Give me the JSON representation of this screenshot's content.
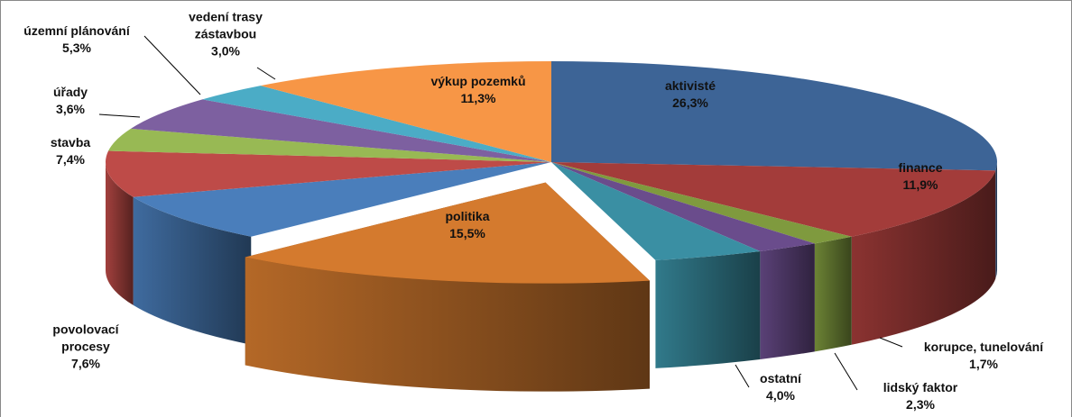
{
  "chart_data": {
    "type": "pie3d",
    "categories": [
      "aktivisté",
      "finance",
      "korupce, tunelování",
      "lidský faktor",
      "ostatní",
      "politika",
      "povolovací procesy",
      "stavba",
      "úřady",
      "územní plánování",
      "vedení trasy zástavbou",
      "výkup pozemků"
    ],
    "values": [
      26.3,
      11.9,
      1.7,
      2.3,
      4.0,
      15.5,
      7.6,
      7.4,
      3.6,
      5.3,
      3.0,
      11.3
    ],
    "value_labels": [
      "26,3%",
      "11,9%",
      "1,7%",
      "2,3%",
      "4,0%",
      "15,5%",
      "7,6%",
      "7,4%",
      "3,6%",
      "5,3%",
      "3,0%",
      "11,3%"
    ],
    "colors": [
      "#3d6496",
      "#a33c3a",
      "#7f9a3e",
      "#6a4c8c",
      "#3a8fa3",
      "#d47a2e",
      "#4a7ebb",
      "#be4b48",
      "#98b954",
      "#7d60a0",
      "#4bacc6",
      "#f79646"
    ],
    "exploded": "politika"
  }
}
